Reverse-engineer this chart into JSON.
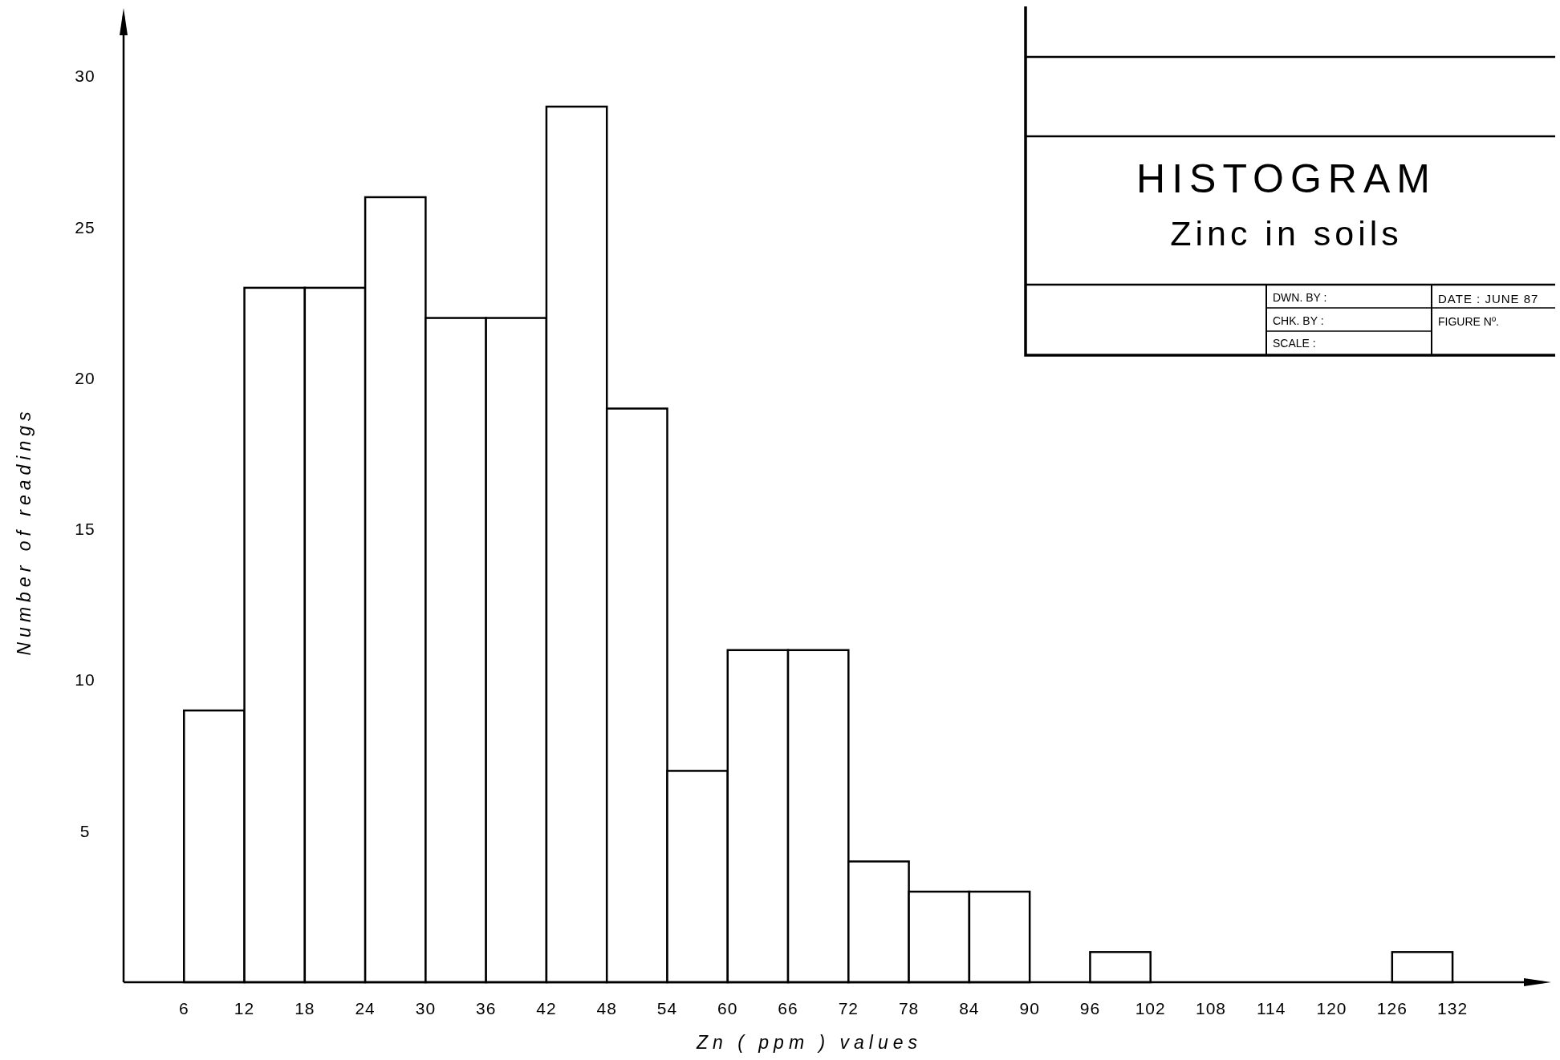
{
  "chart_data": {
    "type": "histogram",
    "title": "HISTOGRAM",
    "subtitle": "Zinc in soils",
    "xlabel": "Zn ( ppm ) values",
    "ylabel": "Number of readings",
    "bins": [
      6,
      12,
      18,
      24,
      30,
      36,
      42,
      48,
      54,
      60,
      66,
      72,
      78,
      84,
      90,
      96,
      102,
      108,
      114,
      120,
      126,
      132
    ],
    "values": [
      9,
      23,
      23,
      26,
      22,
      22,
      29,
      19,
      7,
      11,
      11,
      4,
      3,
      3,
      0,
      1,
      0,
      0,
      0,
      0,
      1
    ],
    "color": "#ffffff",
    "xlim": [
      0,
      141
    ],
    "xticks": [
      6,
      12,
      18,
      24,
      30,
      36,
      42,
      48,
      54,
      60,
      66,
      72,
      78,
      84,
      90,
      96,
      102,
      108,
      114,
      120,
      126,
      132
    ],
    "ylim": [
      0,
      32
    ],
    "yticks": [
      5,
      10,
      15,
      20,
      25,
      30
    ],
    "grid": false,
    "annotations": [
      "DWN. BY :",
      "CHK. BY :",
      "SCALE :",
      "DATE : JUNE 87",
      "FIGURE Nº."
    ]
  }
}
